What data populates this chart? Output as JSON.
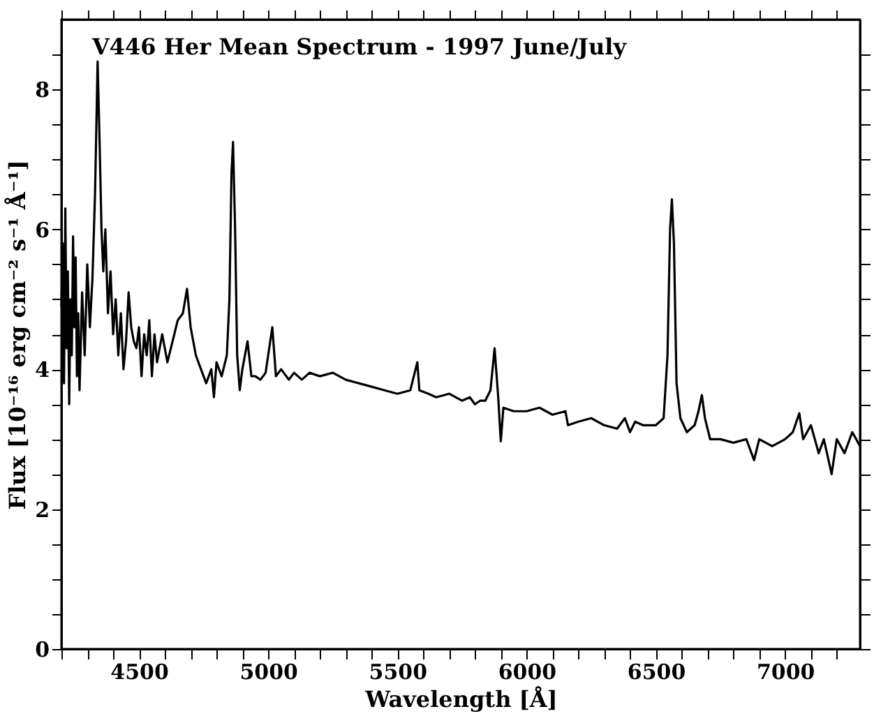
{
  "chart_data": {
    "type": "line",
    "title": "V446 Her Mean Spectrum - 1997 June/July",
    "xlabel": "Wavelength [Å]",
    "ylabel": "Flux [10⁻¹⁶ erg cm⁻² s⁻¹ Å⁻¹]",
    "xlim": [
      4200,
      7290
    ],
    "ylim": [
      0,
      9
    ],
    "xticks": [
      {
        "value": 4200,
        "label": null
      },
      {
        "value": 4300,
        "label": null
      },
      {
        "value": 4400,
        "label": null
      },
      4500,
      {
        "value": 4600,
        "label": null
      },
      {
        "value": 4700,
        "label": null
      },
      {
        "value": 4800,
        "label": null
      },
      {
        "value": 4900,
        "label": null
      },
      5000,
      {
        "value": 5100,
        "label": null
      },
      {
        "value": 5200,
        "label": null
      },
      {
        "value": 5300,
        "label": null
      },
      {
        "value": 5400,
        "label": null
      },
      5500,
      {
        "value": 5600,
        "label": null
      },
      {
        "value": 5700,
        "label": null
      },
      {
        "value": 5800,
        "label": null
      },
      {
        "value": 5900,
        "label": null
      },
      6000,
      {
        "value": 6100,
        "label": null
      },
      {
        "value": 6200,
        "label": null
      },
      {
        "value": 6300,
        "label": null
      },
      {
        "value": 6400,
        "label": null
      },
      6500,
      {
        "value": 6600,
        "label": null
      },
      {
        "value": 6700,
        "label": null
      },
      {
        "value": 6800,
        "label": null
      },
      {
        "value": 6900,
        "label": null
      },
      7000,
      {
        "value": 7100,
        "label": null
      },
      {
        "value": 7200,
        "label": null
      }
    ],
    "yticks": [
      0,
      {
        "value": 0.5,
        "label": null
      },
      {
        "value": 1,
        "label": null
      },
      {
        "value": 1.5,
        "label": null
      },
      2,
      {
        "value": 2.5,
        "label": null
      },
      {
        "value": 3,
        "label": null
      },
      {
        "value": 3.5,
        "label": null
      },
      4,
      {
        "value": 4.5,
        "label": null
      },
      {
        "value": 5,
        "label": null
      },
      {
        "value": 5.5,
        "label": null
      },
      6,
      {
        "value": 6.5,
        "label": null
      },
      {
        "value": 7,
        "label": null
      },
      {
        "value": 7.5,
        "label": null
      },
      8,
      {
        "value": 8.5,
        "label": null
      }
    ],
    "grid": false,
    "marker": "none",
    "line_style": "solid",
    "series": [
      {
        "color": "#000000",
        "x": [
          4200,
          4205,
          4210,
          4215,
          4220,
          4225,
          4230,
          4235,
          4240,
          4245,
          4250,
          4255,
          4260,
          4265,
          4270,
          4280,
          4290,
          4300,
          4310,
          4320,
          4330,
          4340,
          4348,
          4355,
          4362,
          4370,
          4380,
          4390,
          4400,
          4410,
          4420,
          4430,
          4440,
          4450,
          4460,
          4470,
          4480,
          4490,
          4500,
          4510,
          4520,
          4530,
          4540,
          4550,
          4560,
          4570,
          4590,
          4610,
          4630,
          4650,
          4670,
          4686,
          4700,
          4720,
          4740,
          4760,
          4780,
          4790,
          4800,
          4820,
          4840,
          4850,
          4858,
          4864,
          4872,
          4880,
          4890,
          4900,
          4920,
          4935,
          4950,
          4970,
          4990,
          5000,
          5016,
          5030,
          5050,
          5080,
          5100,
          5130,
          5160,
          5200,
          5250,
          5300,
          5350,
          5400,
          5450,
          5500,
          5550,
          5577,
          5585,
          5620,
          5650,
          5700,
          5750,
          5780,
          5800,
          5820,
          5840,
          5860,
          5876,
          5890,
          5900,
          5910,
          5950,
          6000,
          6050,
          6100,
          6150,
          6160,
          6200,
          6250,
          6300,
          6350,
          6380,
          6400,
          6420,
          6450,
          6500,
          6530,
          6545,
          6555,
          6562,
          6570,
          6580,
          6595,
          6620,
          6650,
          6665,
          6678,
          6690,
          6710,
          6750,
          6800,
          6850,
          6880,
          6900,
          6950,
          7000,
          7030,
          7055,
          7070,
          7100,
          7130,
          7150,
          7180,
          7200,
          7230,
          7260,
          7290
        ],
        "values": [
          4.9,
          5.8,
          3.8,
          6.3,
          4.3,
          5.4,
          3.5,
          5.0,
          4.2,
          5.9,
          4.6,
          5.6,
          3.9,
          4.8,
          3.7,
          5.1,
          4.2,
          5.5,
          4.6,
          5.3,
          6.5,
          8.4,
          7.2,
          6.0,
          5.4,
          6.0,
          4.8,
          5.4,
          4.5,
          5.0,
          4.2,
          4.8,
          4.0,
          4.4,
          5.1,
          4.6,
          4.4,
          4.3,
          4.6,
          3.9,
          4.5,
          4.2,
          4.7,
          3.9,
          4.5,
          4.1,
          4.5,
          4.1,
          4.4,
          4.7,
          4.8,
          5.15,
          4.6,
          4.2,
          4.0,
          3.8,
          4.0,
          3.6,
          4.1,
          3.9,
          4.2,
          5.0,
          6.8,
          7.25,
          6.0,
          4.2,
          3.7,
          4.0,
          4.4,
          3.9,
          3.9,
          3.85,
          3.95,
          4.2,
          4.6,
          3.9,
          4.0,
          3.85,
          3.95,
          3.85,
          3.95,
          3.9,
          3.95,
          3.85,
          3.8,
          3.75,
          3.7,
          3.65,
          3.7,
          4.1,
          3.7,
          3.65,
          3.6,
          3.65,
          3.55,
          3.6,
          3.5,
          3.55,
          3.55,
          3.7,
          4.3,
          3.6,
          2.97,
          3.45,
          3.4,
          3.4,
          3.45,
          3.35,
          3.4,
          3.2,
          3.25,
          3.3,
          3.2,
          3.15,
          3.3,
          3.1,
          3.25,
          3.2,
          3.2,
          3.3,
          4.2,
          6.0,
          6.43,
          5.8,
          3.8,
          3.3,
          3.1,
          3.2,
          3.4,
          3.63,
          3.3,
          3.0,
          3.0,
          2.95,
          3.0,
          2.7,
          3.0,
          2.9,
          3.0,
          3.1,
          3.37,
          3.0,
          3.2,
          2.8,
          3.0,
          2.5,
          3.0,
          2.8,
          3.1,
          2.9
        ]
      }
    ]
  }
}
